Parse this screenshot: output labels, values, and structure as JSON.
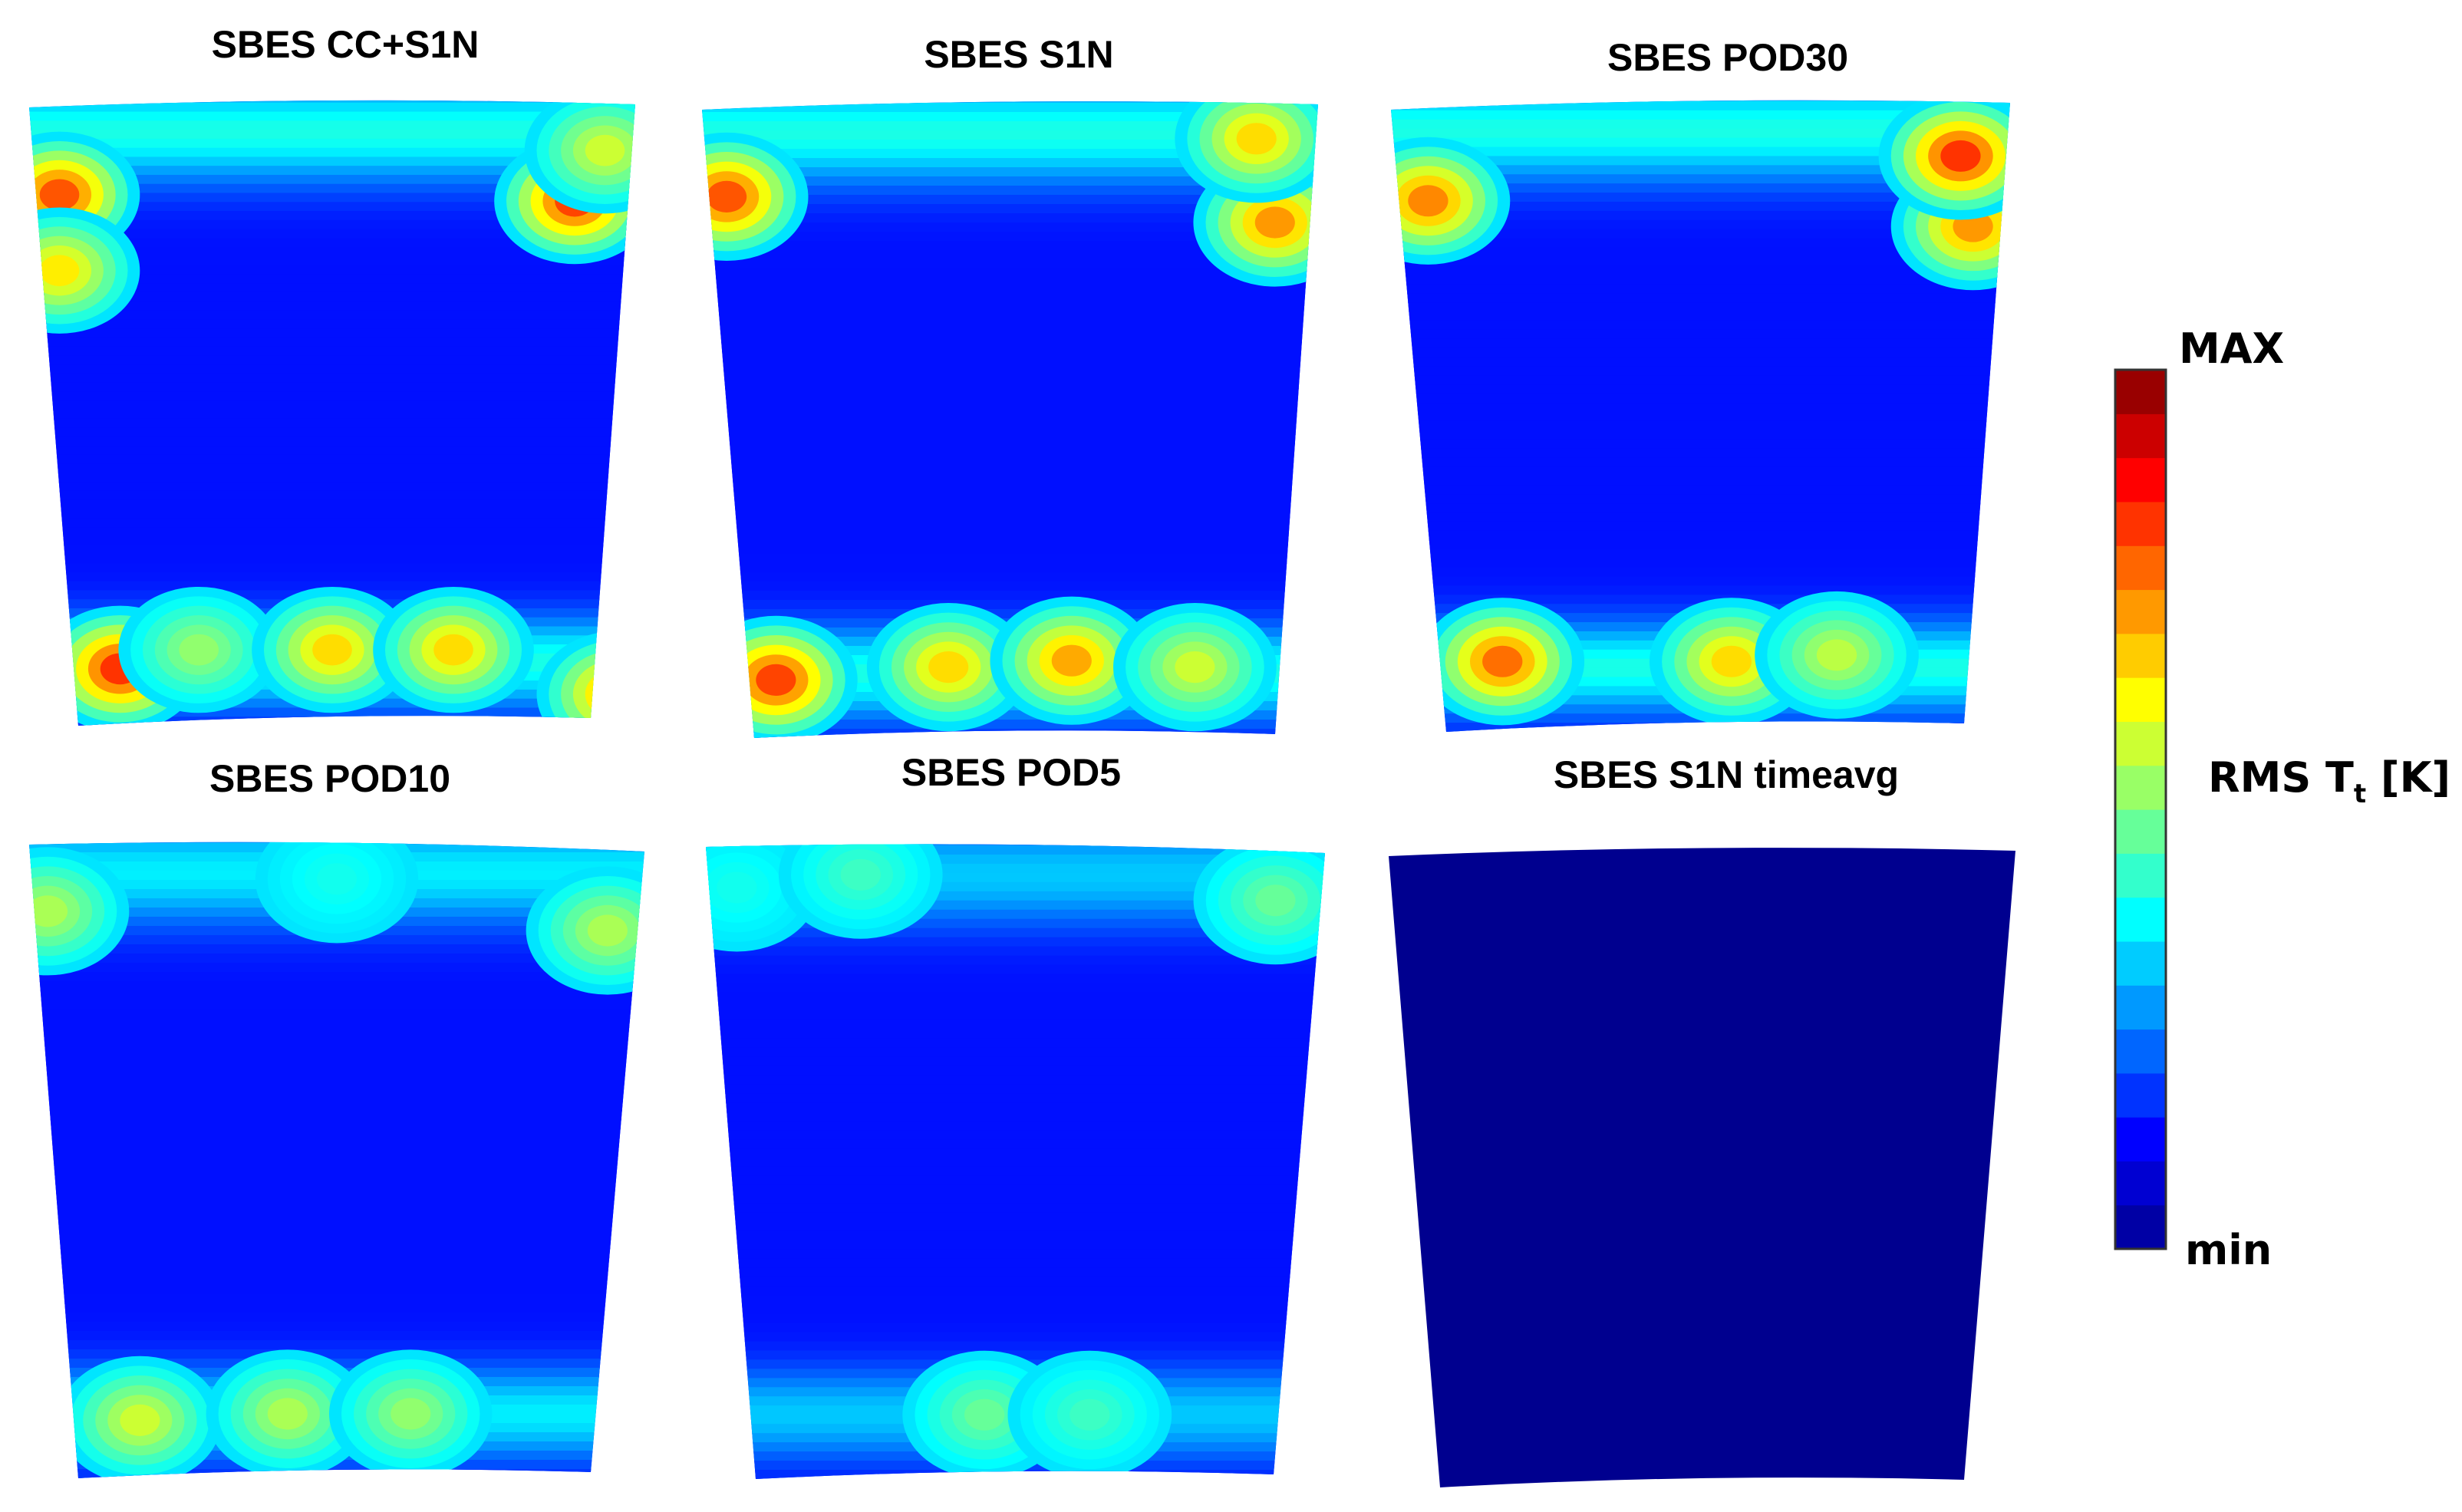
{
  "chart_data": {
    "type": "heatmap",
    "quantity": "RMS T_t [K]",
    "panels": [
      {
        "title": "SBES CC+S1N",
        "hot_spots": [
          {
            "u": 0.05,
            "v": 0.16,
            "level": 0.88
          },
          {
            "u": 0.05,
            "v": 0.28,
            "level": 0.7
          },
          {
            "u": 0.9,
            "v": 0.17,
            "level": 0.9
          },
          {
            "u": 0.95,
            "v": 0.09,
            "level": 0.62
          },
          {
            "u": 0.15,
            "v": 0.91,
            "level": 0.92
          },
          {
            "u": 0.28,
            "v": 0.88,
            "level": 0.55
          },
          {
            "u": 0.5,
            "v": 0.88,
            "level": 0.72
          },
          {
            "u": 0.7,
            "v": 0.88,
            "level": 0.72
          },
          {
            "u": 0.97,
            "v": 0.95,
            "level": 0.78
          }
        ]
      },
      {
        "title": "SBES S1N",
        "hot_spots": [
          {
            "u": 0.04,
            "v": 0.16,
            "level": 0.88
          },
          {
            "u": 0.93,
            "v": 0.2,
            "level": 0.8
          },
          {
            "u": 0.9,
            "v": 0.07,
            "level": 0.72
          },
          {
            "u": 0.12,
            "v": 0.91,
            "level": 0.9
          },
          {
            "u": 0.4,
            "v": 0.89,
            "level": 0.72
          },
          {
            "u": 0.6,
            "v": 0.88,
            "level": 0.78
          },
          {
            "u": 0.8,
            "v": 0.89,
            "level": 0.62
          }
        ]
      },
      {
        "title": "SBES POD30",
        "hot_spots": [
          {
            "u": 0.06,
            "v": 0.17,
            "level": 0.82
          },
          {
            "u": 0.94,
            "v": 0.21,
            "level": 0.8
          },
          {
            "u": 0.92,
            "v": 0.1,
            "level": 0.92
          },
          {
            "u": 0.18,
            "v": 0.89,
            "level": 0.85
          },
          {
            "u": 0.55,
            "v": 0.89,
            "level": 0.72
          },
          {
            "u": 0.72,
            "v": 0.88,
            "level": 0.6
          }
        ]
      },
      {
        "title": "SBES POD10",
        "hot_spots": [
          {
            "u": 0.03,
            "v": 0.12,
            "level": 0.58
          },
          {
            "u": 0.94,
            "v": 0.15,
            "level": 0.58
          },
          {
            "u": 0.5,
            "v": 0.07,
            "level": 0.4
          },
          {
            "u": 0.18,
            "v": 0.91,
            "level": 0.62
          },
          {
            "u": 0.42,
            "v": 0.9,
            "level": 0.58
          },
          {
            "u": 0.62,
            "v": 0.9,
            "level": 0.55
          }
        ]
      },
      {
        "title": "SBES POD5",
        "hot_spots": [
          {
            "u": 0.05,
            "v": 0.08,
            "level": 0.4
          },
          {
            "u": 0.92,
            "v": 0.1,
            "level": 0.5
          },
          {
            "u": 0.25,
            "v": 0.06,
            "level": 0.45
          },
          {
            "u": 0.45,
            "v": 0.9,
            "level": 0.5
          },
          {
            "u": 0.62,
            "v": 0.9,
            "level": 0.45
          }
        ]
      },
      {
        "title": "SBES S1N timeavg",
        "hot_spots": []
      }
    ],
    "colorbar": {
      "label_main": "RMS T",
      "label_sub": "t",
      "label_unit": " [K]",
      "max_label": "MAX",
      "min_label": "min",
      "levels": 20,
      "colormap": "jet"
    }
  }
}
